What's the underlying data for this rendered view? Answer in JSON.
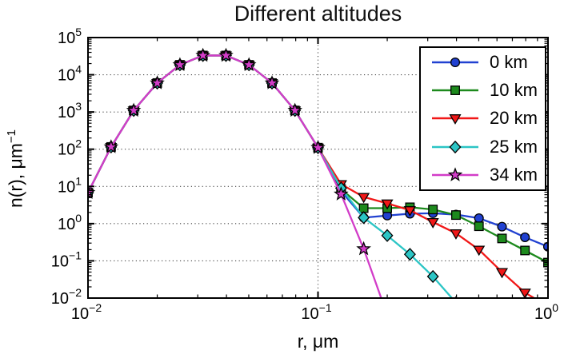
{
  "title": "Different altitudes",
  "chart_data": {
    "type": "line",
    "title": "Different altitudes",
    "xlabel": "r, μm",
    "ylabel": "n(r), μm⁻¹",
    "ylabel_base": "n(r), μm",
    "ylabel_exp": "−1",
    "x_axis": {
      "label": "r, μm",
      "scale": "log",
      "min": 0.01,
      "max": 1.0,
      "tick_exponents": [
        -2,
        -1,
        0
      ]
    },
    "y_axis": {
      "label": "n(r), μm⁻¹",
      "scale": "log",
      "min": 0.01,
      "max": 100000,
      "tick_exponents": [
        5,
        4,
        3,
        2,
        1,
        0,
        -1,
        -2
      ]
    },
    "grid": {
      "shown": true,
      "style": "dotted",
      "color": "#444444",
      "x_gridlines_at": [
        0.1
      ],
      "y_gridlines_at": [
        10000,
        1000,
        100,
        10,
        1,
        0.1
      ]
    },
    "legend": {
      "position": "upper right",
      "entries": [
        "0 km",
        "10 km",
        "20 km",
        "25 km",
        "34 km"
      ]
    },
    "x": [
      0.01,
      0.0126,
      0.0158,
      0.02,
      0.0251,
      0.0316,
      0.0398,
      0.0501,
      0.0631,
      0.0794,
      0.1,
      0.126,
      0.158,
      0.2,
      0.251,
      0.316,
      0.398,
      0.501,
      0.631,
      0.794,
      1.0
    ],
    "series": [
      {
        "name": "0 km",
        "color": "#2141d1",
        "marker": "circle",
        "values": [
          6.8,
          115,
          1100,
          6000,
          18500,
          33000,
          33000,
          18500,
          6000,
          1100,
          110,
          7.5,
          1.45,
          1.65,
          1.85,
          1.9,
          1.75,
          1.4,
          0.83,
          0.43,
          0.24
        ]
      },
      {
        "name": "10 km",
        "color": "#1d8a1d",
        "marker": "square",
        "values": [
          6.8,
          115,
          1100,
          6000,
          18500,
          33000,
          33000,
          18500,
          6000,
          1100,
          110,
          8.5,
          2.6,
          2.6,
          2.75,
          2.4,
          1.7,
          0.85,
          0.4,
          0.19,
          0.09
        ]
      },
      {
        "name": "20 km",
        "color": "#f11717",
        "marker": "triangle-down",
        "values": [
          6.8,
          115,
          1100,
          6000,
          18500,
          33000,
          33000,
          18500,
          6000,
          1100,
          110,
          11.5,
          5.2,
          3.5,
          2.3,
          1.1,
          0.55,
          0.2,
          0.05,
          0.014,
          0.006
        ]
      },
      {
        "name": "25 km",
        "color": "#2bc5c5",
        "marker": "diamond",
        "values": [
          6.8,
          115,
          1100,
          6000,
          18500,
          33000,
          33000,
          18500,
          6000,
          1100,
          110,
          9.0,
          1.45,
          0.48,
          0.15,
          0.038,
          0.0075,
          null,
          null,
          null,
          null
        ]
      },
      {
        "name": "34 km",
        "color": "#d23cc8",
        "marker": "star",
        "values": [
          6.8,
          115,
          1100,
          6000,
          18500,
          33000,
          33000,
          18500,
          6000,
          1100,
          110,
          6.2,
          0.21,
          0.0035,
          null,
          null,
          null,
          null,
          null,
          null,
          null
        ]
      }
    ]
  }
}
